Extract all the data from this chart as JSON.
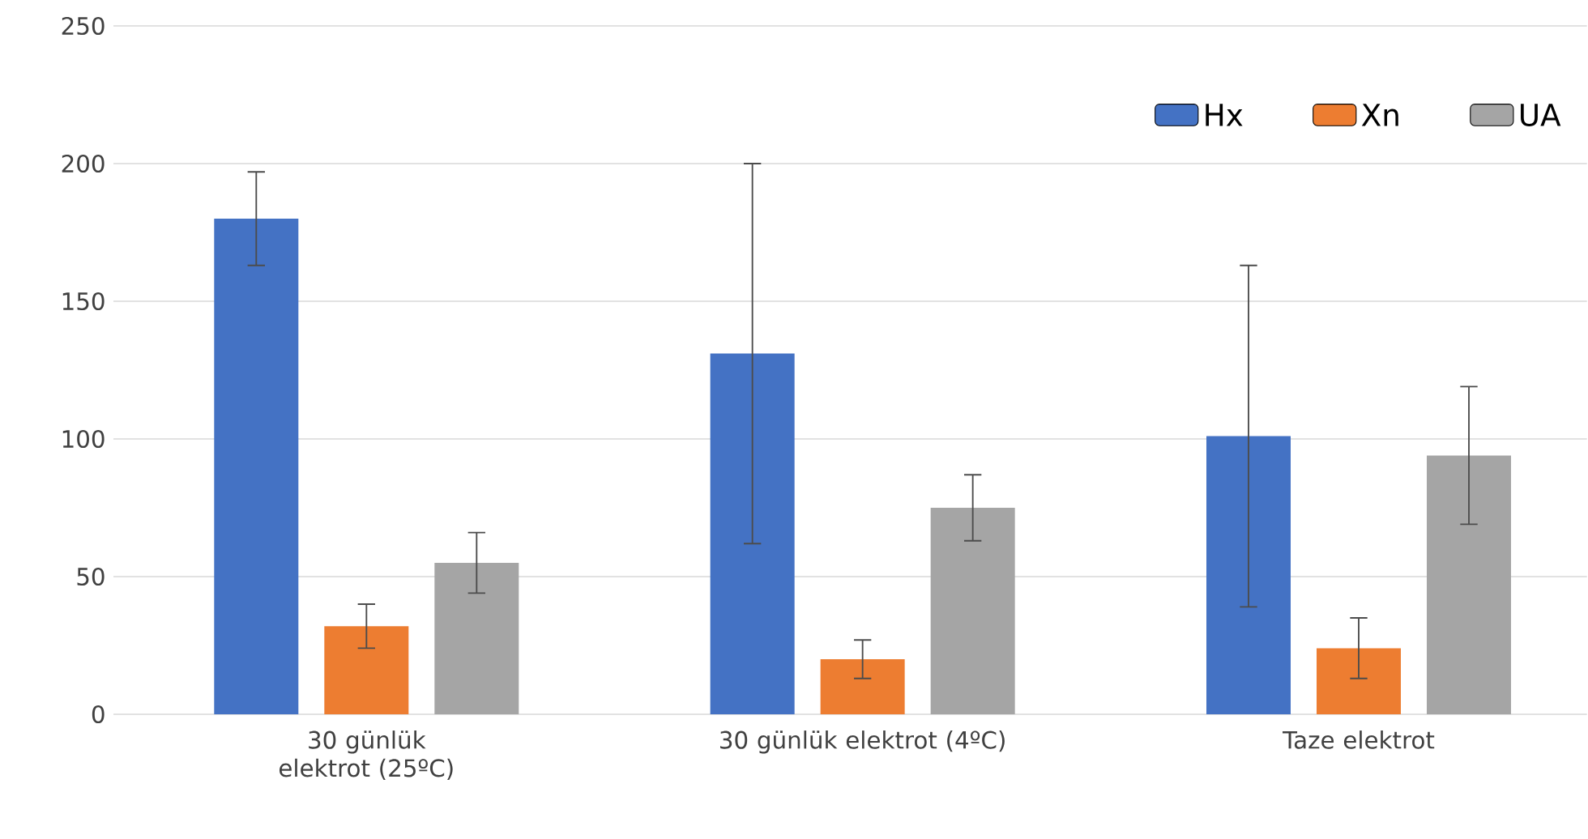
{
  "chart_data": {
    "type": "bar",
    "categories": [
      "30 günlük elektrot (25ºC)",
      "30 günlük elektrot (4ºC)",
      "Taze elektrot"
    ],
    "series": [
      {
        "name": "Hx",
        "color": "#4472c4",
        "values": [
          180,
          131,
          101
        ],
        "errors": [
          17,
          69,
          62
        ]
      },
      {
        "name": "Xn",
        "color": "#ed7d31",
        "values": [
          32,
          20,
          24
        ],
        "errors": [
          8,
          7,
          11
        ]
      },
      {
        "name": "UA",
        "color": "#a5a5a5",
        "values": [
          55,
          75,
          94
        ],
        "errors": [
          11,
          12,
          25
        ]
      }
    ],
    "ylim": [
      0,
      250
    ],
    "yticks": [
      0,
      50,
      100,
      150,
      200,
      250
    ],
    "grid": "y",
    "legend": "top right"
  }
}
